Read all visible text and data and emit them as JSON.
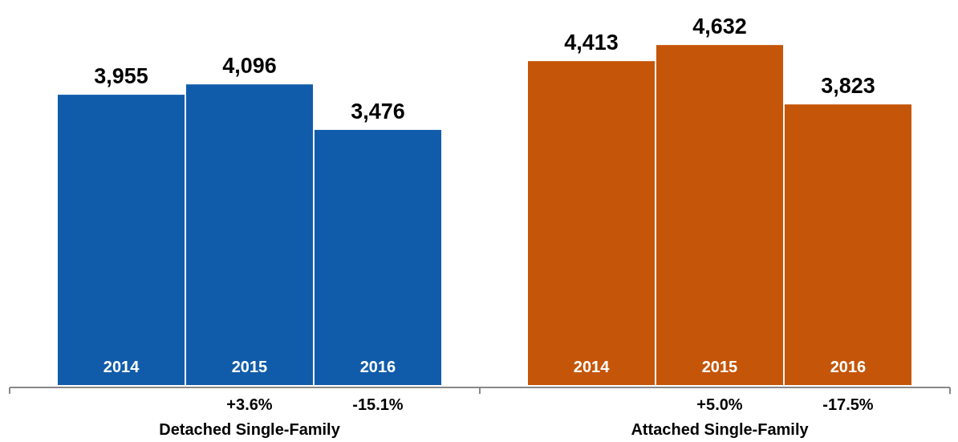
{
  "chart_data": [
    {
      "type": "bar",
      "xlabel": "Detached Single-Family",
      "categories": [
        "2014",
        "2015",
        "2016"
      ],
      "values": [
        3955,
        4096,
        3476
      ],
      "color": "#115caa",
      "value_labels": [
        "3,955",
        "4,096",
        "3,476"
      ],
      "annotations": [
        "+3.6%",
        "-15.1%"
      ]
    },
    {
      "type": "bar",
      "xlabel": "Attached Single-Family",
      "categories": [
        "2014",
        "2015",
        "2016"
      ],
      "values": [
        4413,
        4632,
        3823
      ],
      "color": "#c55508",
      "value_labels": [
        "4,413",
        "4,632",
        "3,823"
      ],
      "annotations": [
        "+5.0%",
        "-17.5%"
      ]
    }
  ]
}
